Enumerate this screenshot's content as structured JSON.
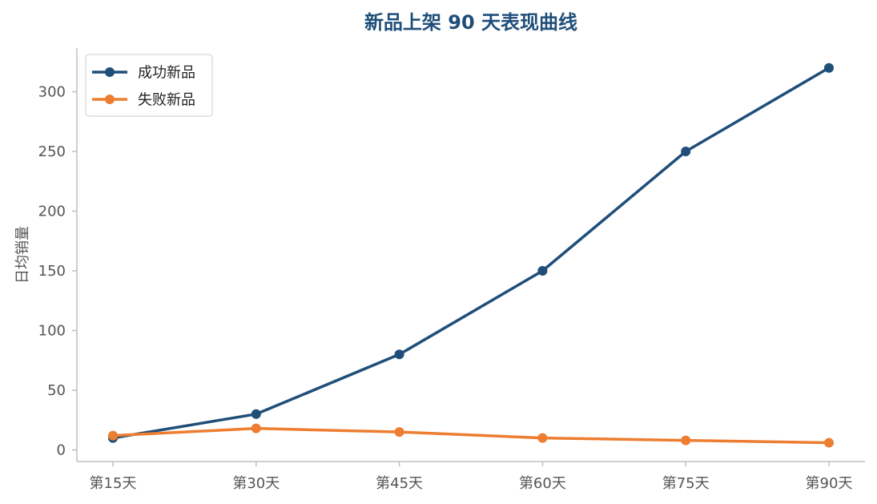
{
  "chart_data": {
    "type": "line",
    "title": "新品上架 90 天表现曲线",
    "xlabel": "",
    "ylabel": "日均销量",
    "categories": [
      "第15天",
      "第30天",
      "第45天",
      "第60天",
      "第75天",
      "第90天"
    ],
    "y_ticks": [
      0,
      50,
      100,
      150,
      200,
      250,
      300
    ],
    "ylim": [
      -10,
      330
    ],
    "grid": false,
    "legend_position": "top-left",
    "series": [
      {
        "name": "成功新品",
        "color": "#1f4e79",
        "values": [
          10,
          30,
          80,
          150,
          250,
          320
        ]
      },
      {
        "name": "失败新品",
        "color": "#ed7d31",
        "values": [
          12,
          18,
          15,
          10,
          8,
          6
        ]
      }
    ]
  }
}
